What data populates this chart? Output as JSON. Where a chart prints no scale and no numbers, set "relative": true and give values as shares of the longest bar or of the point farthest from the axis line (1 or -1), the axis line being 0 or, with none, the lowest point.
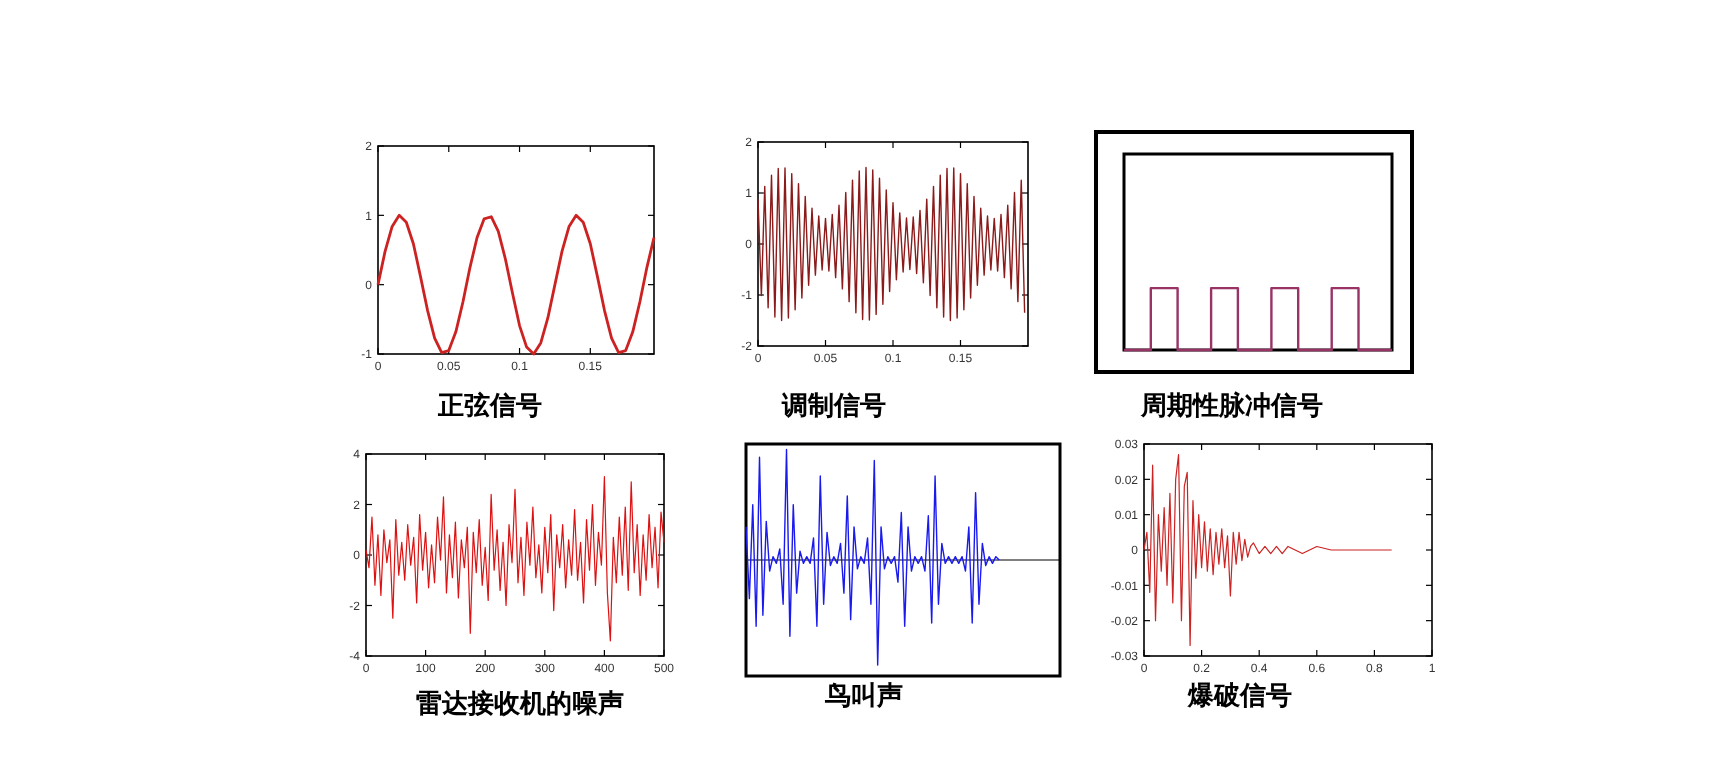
{
  "chart_data": [
    {
      "type": "line",
      "title": "正弦信号",
      "color": "#cc2222",
      "xlim": [
        0,
        0.195
      ],
      "ylim": [
        -1,
        2
      ],
      "xticks": [
        0,
        0.05,
        0.1,
        0.15
      ],
      "yticks": [
        -1,
        0,
        1,
        2
      ],
      "x": [
        0,
        0.005,
        0.01,
        0.015,
        0.02,
        0.025,
        0.03,
        0.035,
        0.04,
        0.045,
        0.05,
        0.055,
        0.06,
        0.065,
        0.07,
        0.075,
        0.08,
        0.085,
        0.09,
        0.095,
        0.1,
        0.105,
        0.11,
        0.115,
        0.12,
        0.125,
        0.13,
        0.135,
        0.14,
        0.145,
        0.15,
        0.155,
        0.16,
        0.165,
        0.17,
        0.175,
        0.18,
        0.185,
        0.19,
        0.195
      ],
      "values": [
        0,
        0.48,
        0.84,
        1,
        0.9,
        0.59,
        0.12,
        -0.37,
        -0.77,
        -0.98,
        -0.95,
        -0.68,
        -0.25,
        0.25,
        0.68,
        0.95,
        0.98,
        0.77,
        0.37,
        -0.12,
        -0.59,
        -0.9,
        -1,
        -0.84,
        -0.48,
        0,
        0.48,
        0.84,
        1,
        0.9,
        0.59,
        0.12,
        -0.37,
        -0.77,
        -0.98,
        -0.95,
        -0.68,
        -0.25,
        0.25,
        0.68
      ]
    },
    {
      "type": "line",
      "title": "调制信号",
      "color": "#8b1a1a",
      "xlim": [
        0,
        0.2
      ],
      "ylim": [
        -2,
        2
      ],
      "xticks": [
        0,
        0.05,
        0.1,
        0.15
      ],
      "yticks": [
        -2,
        -1,
        0,
        1,
        2
      ],
      "x": [
        0,
        0.0025,
        0.005,
        0.0075,
        0.01,
        0.0125,
        0.015,
        0.0175,
        0.02,
        0.0225,
        0.025,
        0.0275,
        0.03,
        0.0325,
        0.035,
        0.0375,
        0.04,
        0.0425,
        0.045,
        0.0475,
        0.05,
        0.0525,
        0.055,
        0.0575,
        0.06,
        0.0625,
        0.065,
        0.0675,
        0.07,
        0.0725,
        0.075,
        0.0775,
        0.08,
        0.0825,
        0.085,
        0.0875,
        0.09,
        0.0925,
        0.095,
        0.0975,
        0.1,
        0.1025,
        0.105,
        0.1075,
        0.11,
        0.1125,
        0.115,
        0.1175,
        0.12,
        0.1225,
        0.125,
        0.1275,
        0.13,
        0.1325,
        0.135,
        0.1375,
        0.14,
        0.1425,
        0.145,
        0.1475,
        0.15,
        0.1525,
        0.155,
        0.1575,
        0.16,
        0.1625,
        0.165,
        0.1675,
        0.17,
        0.1725,
        0.175,
        0.1775,
        0.18,
        0.1825,
        0.185,
        0.1875,
        0.19,
        0.1925,
        0.195,
        0.1975
      ],
      "values": [
        0.88,
        -1.01,
        1.13,
        -1.25,
        1.35,
        -1.43,
        1.48,
        -1.5,
        1.49,
        -1.45,
        1.38,
        -1.29,
        1.18,
        -1.06,
        0.93,
        -0.81,
        0.7,
        -0.61,
        0.55,
        -0.51,
        0.5,
        -0.53,
        0.58,
        -0.66,
        0.76,
        -0.88,
        1.01,
        -1.13,
        1.25,
        -1.35,
        1.43,
        -1.48,
        1.5,
        -1.49,
        1.45,
        -1.38,
        1.29,
        -1.18,
        1.06,
        -0.93,
        0.81,
        -0.7,
        0.61,
        -0.55,
        0.51,
        -0.5,
        0.53,
        -0.58,
        0.66,
        -0.76,
        0.88,
        -1.01,
        1.13,
        -1.25,
        1.35,
        -1.43,
        1.48,
        -1.5,
        1.49,
        -1.45,
        1.38,
        -1.29,
        1.18,
        -1.06,
        0.93,
        -0.81,
        0.7,
        -0.61,
        0.55,
        -0.51,
        0.5,
        -0.53,
        0.58,
        -0.66,
        0.76,
        -0.88,
        1.01,
        -1.13,
        1.25,
        -1.35
      ]
    },
    {
      "type": "step",
      "title": "周期性脉冲信号",
      "color": "#993366",
      "relative": true,
      "categories": [
        null,
        null,
        null,
        null,
        null,
        null,
        null,
        null,
        null,
        null,
        null,
        null,
        null,
        null,
        null,
        null,
        null,
        null,
        null,
        null,
        null,
        null,
        null,
        null,
        null,
        null,
        null,
        null,
        null,
        null,
        null,
        null,
        null,
        null,
        null,
        null,
        null,
        null,
        null,
        null,
        null
      ],
      "values": [
        0,
        0,
        0,
        0,
        1,
        1,
        1,
        1,
        0,
        0,
        0,
        0,
        0,
        1,
        1,
        1,
        1,
        0,
        0,
        0,
        0,
        0,
        1,
        1,
        1,
        1,
        0,
        0,
        0,
        0,
        0,
        1,
        1,
        1,
        1,
        0,
        0,
        0,
        0,
        0,
        0
      ]
    },
    {
      "type": "line",
      "title": "雷达接收机的噪声",
      "color": "#dd1111",
      "xlim": [
        0,
        500
      ],
      "ylim": [
        -4,
        4
      ],
      "xticks": [
        0,
        100,
        200,
        300,
        400,
        500
      ],
      "yticks": [
        -4,
        -2,
        0,
        2,
        4
      ],
      "x": [
        0,
        5,
        10,
        15,
        20,
        25,
        30,
        35,
        40,
        45,
        50,
        55,
        60,
        65,
        70,
        75,
        80,
        85,
        90,
        95,
        100,
        105,
        110,
        115,
        120,
        125,
        130,
        135,
        140,
        145,
        150,
        155,
        160,
        165,
        170,
        175,
        180,
        185,
        190,
        195,
        200,
        205,
        210,
        215,
        220,
        225,
        230,
        235,
        240,
        245,
        250,
        255,
        260,
        265,
        270,
        275,
        280,
        285,
        290,
        295,
        300,
        305,
        310,
        315,
        320,
        325,
        330,
        335,
        340,
        345,
        350,
        355,
        360,
        365,
        370,
        375,
        380,
        385,
        390,
        395,
        400,
        405,
        410,
        415,
        420,
        425,
        430,
        435,
        440,
        445,
        450,
        455,
        460,
        465,
        470,
        475,
        480,
        485,
        490,
        495,
        500
      ],
      "values": [
        0.2,
        -0.5,
        1.5,
        -1.2,
        0.8,
        -1.6,
        1,
        -0.3,
        0.6,
        -2.5,
        1.4,
        -0.8,
        0.5,
        -1,
        1.2,
        -0.4,
        0.7,
        -1.9,
        1.6,
        -0.6,
        0.9,
        -1.3,
        0.4,
        -1.1,
        1.5,
        -0.2,
        2.3,
        -1.5,
        0.8,
        -0.9,
        1.3,
        -1.7,
        0.6,
        -0.5,
        1.1,
        -3.1,
        0.9,
        -0.7,
        1.4,
        -1.2,
        0.3,
        -1.8,
        2.4,
        -0.6,
        1,
        -1.4,
        0.5,
        -2,
        1.2,
        -0.3,
        2.6,
        -1.1,
        0.7,
        -1.6,
        1.3,
        -0.4,
        1.9,
        -0.9,
        0.4,
        -1.5,
        1.1,
        -0.7,
        1.6,
        -2.2,
        0.8,
        -0.5,
        1.2,
        -1.3,
        0.6,
        -0.8,
        1.8,
        -1,
        0.5,
        -1.9,
        1.4,
        -0.6,
        2,
        -1.2,
        0.9,
        -0.4,
        3.1,
        -1.5,
        -3.4,
        0.7,
        -1.1,
        1.5,
        -0.8,
        1.9,
        -1.4,
        2.9,
        -0.7,
        1.2,
        -1.6,
        0.8,
        -1,
        1.6,
        -0.5,
        1.1,
        -1.3,
        1.7,
        0.5
      ]
    },
    {
      "type": "line",
      "title": "鸟叫声",
      "color": "#1a1aee",
      "relative": true,
      "categories": [
        null,
        null,
        null,
        null,
        null,
        null,
        null,
        null,
        null,
        null,
        null,
        null,
        null,
        null,
        null,
        null,
        null,
        null,
        null,
        null,
        null,
        null,
        null,
        null,
        null,
        null,
        null,
        null,
        null,
        null,
        null,
        null,
        null,
        null,
        null,
        null,
        null,
        null,
        null,
        null,
        null,
        null,
        null,
        null,
        null,
        null,
        null,
        null,
        null,
        null,
        null,
        null,
        null,
        null,
        null,
        null,
        null,
        null,
        null,
        null,
        null,
        null,
        null,
        null,
        null,
        null,
        null,
        null,
        null,
        null,
        null,
        null,
        null,
        null,
        null,
        null,
        null,
        null,
        null,
        null,
        null,
        null,
        null,
        null,
        null,
        null,
        null,
        null,
        null,
        null,
        null,
        null,
        null,
        null
      ],
      "values": [
        0.3,
        -0.35,
        0.5,
        -0.6,
        0.93,
        -0.5,
        0.35,
        -0.1,
        0.03,
        -0.03,
        0.1,
        -0.4,
        1,
        -0.69,
        0.5,
        -0.3,
        0.08,
        -0.03,
        0.03,
        -0.03,
        0.2,
        -0.6,
        0.76,
        -0.4,
        0.25,
        -0.05,
        0.03,
        -0.03,
        0.15,
        -0.3,
        0.58,
        -0.54,
        0.3,
        -0.08,
        0.03,
        -0.03,
        0.2,
        -0.4,
        0.9,
        -0.95,
        0.3,
        -0.08,
        0.03,
        -0.03,
        0.03,
        -0.2,
        0.43,
        -0.6,
        0.3,
        -0.1,
        0.03,
        -0.03,
        0.03,
        -0.1,
        0.4,
        -0.57,
        0.76,
        -0.4,
        0.15,
        -0.03,
        0.03,
        -0.03,
        0.03,
        -0.03,
        0.03,
        -0.1,
        0.3,
        -0.57,
        0.61,
        -0.4,
        0.15,
        -0.05,
        0.03,
        -0.03,
        0.03,
        0,
        null,
        null,
        null,
        null,
        null,
        null,
        null,
        null,
        null,
        null,
        null,
        null,
        null,
        null,
        null,
        null,
        null,
        null
      ]
    },
    {
      "type": "line",
      "title": "爆破信号",
      "color": "#cc2222",
      "xlim": [
        0,
        1
      ],
      "ylim": [
        -0.03,
        0.03
      ],
      "xticks": [
        0,
        0.2,
        0.4,
        0.6,
        0.8,
        1
      ],
      "yticks": [
        -0.03,
        -0.02,
        -0.01,
        0,
        0.01,
        0.02,
        0.03
      ],
      "x": [
        0,
        0.01,
        0.02,
        0.03,
        0.04,
        0.05,
        0.06,
        0.07,
        0.08,
        0.09,
        0.1,
        0.11,
        0.12,
        0.13,
        0.14,
        0.15,
        0.16,
        0.17,
        0.18,
        0.19,
        0.2,
        0.21,
        0.22,
        0.23,
        0.24,
        0.25,
        0.26,
        0.27,
        0.28,
        0.29,
        0.3,
        0.31,
        0.32,
        0.33,
        0.34,
        0.35,
        0.36,
        0.37,
        0.38,
        0.4,
        0.42,
        0.44,
        0.46,
        0.48,
        0.5,
        0.55,
        0.6,
        0.65,
        0.7,
        0.75,
        0.8,
        0.86
      ],
      "values": [
        0,
        0.005,
        -0.012,
        0.024,
        -0.02,
        0.01,
        -0.006,
        0.012,
        -0.01,
        0.016,
        -0.015,
        0.02,
        0.027,
        -0.02,
        0.018,
        0.022,
        -0.027,
        0.014,
        -0.008,
        0.01,
        -0.005,
        0.008,
        -0.006,
        0.006,
        -0.007,
        0.005,
        -0.004,
        0.006,
        -0.005,
        0.004,
        -0.013,
        0.005,
        -0.004,
        0.005,
        -0.003,
        0.003,
        -0.002,
        0.001,
        0.002,
        -0.001,
        0.001,
        -0.001,
        0.001,
        -0.001,
        0.001,
        -0.001,
        0.001,
        0,
        0,
        0,
        0,
        0
      ]
    }
  ]
}
